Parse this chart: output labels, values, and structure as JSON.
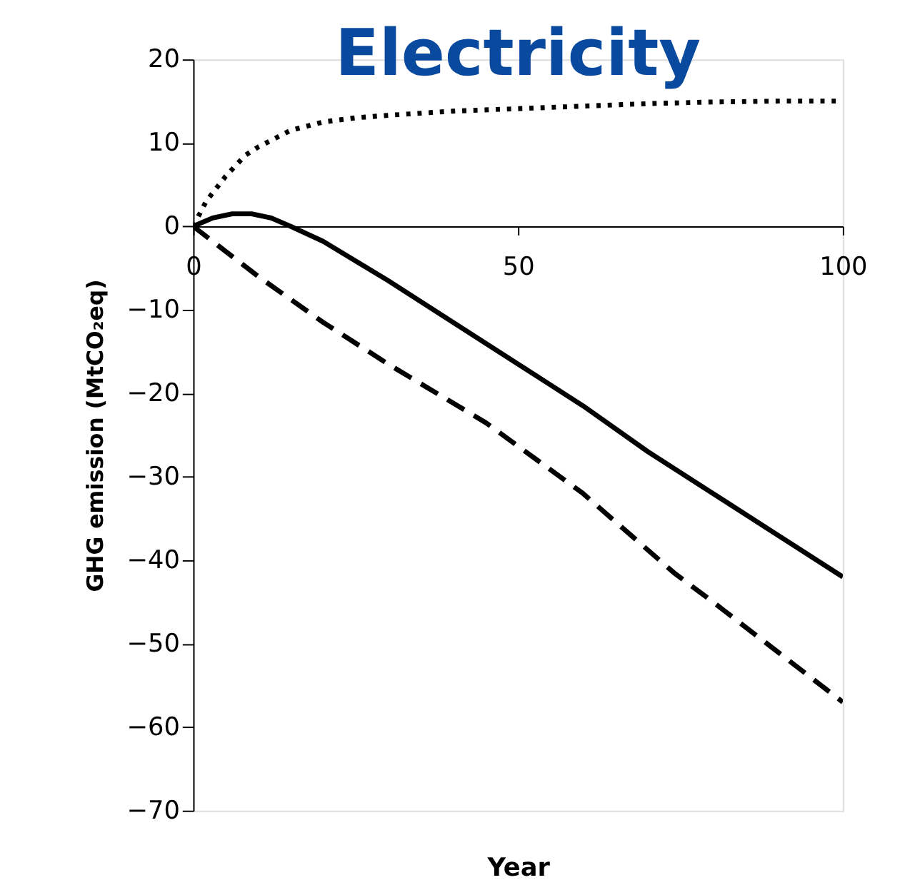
{
  "chart_data": {
    "type": "line",
    "title": "Electricity",
    "xlabel": "Year",
    "ylabel": "GHG emission (MtCO₂eq)",
    "xlim": [
      0,
      100
    ],
    "xticks": [
      0,
      50,
      100
    ],
    "ylim": [
      -70,
      20
    ],
    "yticks": [
      -70,
      -60,
      -50,
      -40,
      -30,
      -20,
      -10,
      0,
      10,
      20
    ],
    "grid": false,
    "series": [
      {
        "color": "#000000",
        "line_style": "dotted",
        "x": [
          0,
          2,
          5,
          8,
          10,
          15,
          20,
          25,
          30,
          40,
          50,
          60,
          70,
          80,
          90,
          100
        ],
        "values": [
          0,
          3,
          6,
          8.5,
          9.5,
          11.5,
          12.5,
          13,
          13.3,
          13.8,
          14.1,
          14.4,
          14.7,
          14.9,
          15,
          15
        ]
      },
      {
        "color": "#000000",
        "line_style": "solid",
        "x": [
          0,
          3,
          6,
          9,
          12,
          15,
          20,
          30,
          40,
          50,
          60,
          70,
          80,
          90,
          100
        ],
        "values": [
          0,
          1,
          1.5,
          1.5,
          1,
          0,
          -1.8,
          -6.5,
          -11.5,
          -16.5,
          -21.5,
          -27,
          -32,
          -37,
          -42
        ]
      },
      {
        "color": "#000000",
        "line_style": "dashed",
        "x": [
          0,
          10,
          20,
          30,
          45,
          60,
          74,
          80,
          100
        ],
        "values": [
          0,
          -6,
          -11.5,
          -16.5,
          -23.5,
          -32,
          -41.5,
          -45,
          -57
        ]
      }
    ]
  }
}
